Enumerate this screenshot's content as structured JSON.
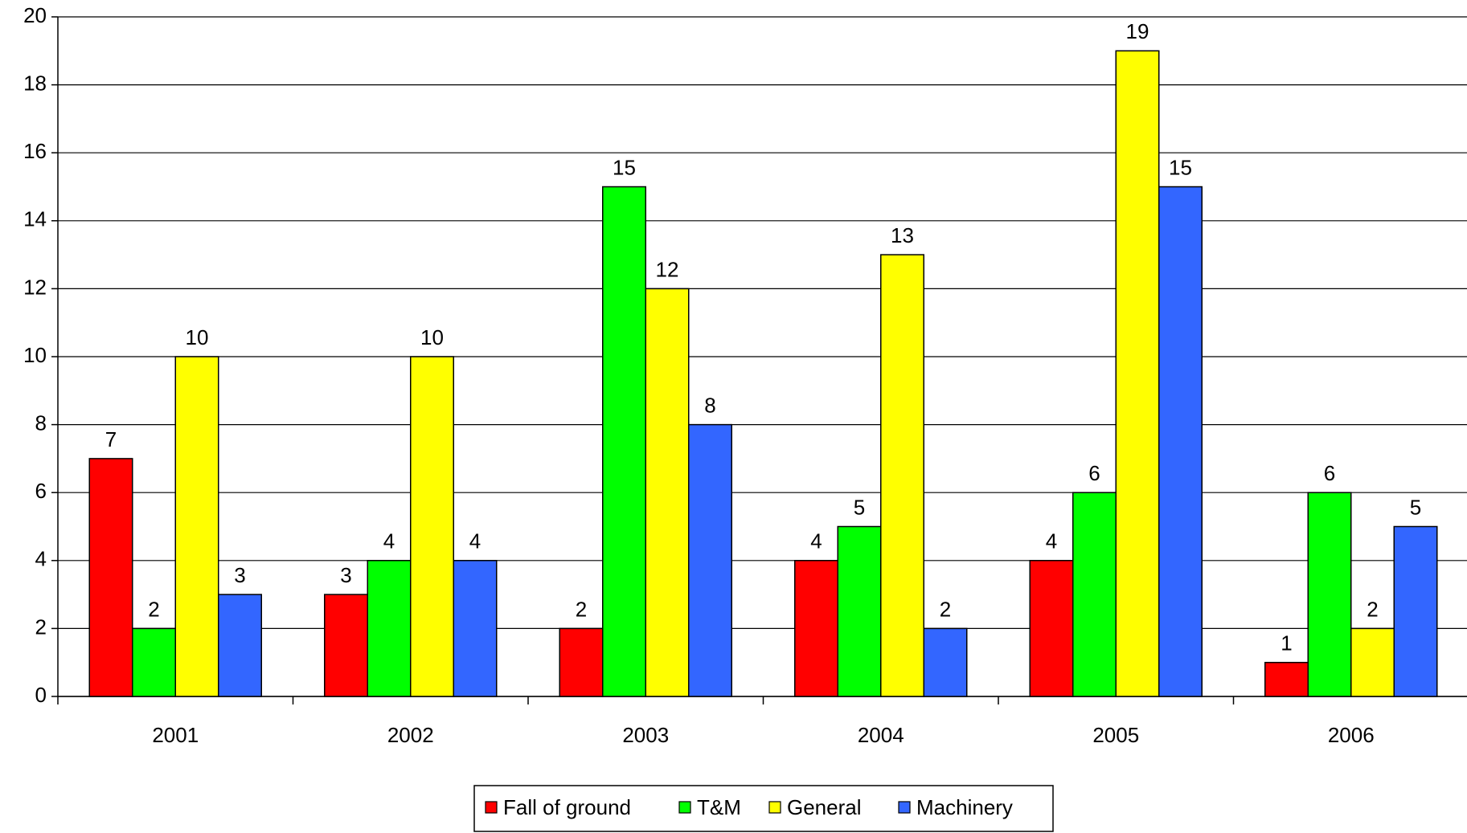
{
  "chart_data": {
    "type": "bar",
    "categories": [
      "2001",
      "2002",
      "2003",
      "2004",
      "2005",
      "2006"
    ],
    "series": [
      {
        "name": "Fall of ground",
        "color": "#ff0000",
        "values": [
          7,
          3,
          2,
          4,
          4,
          1
        ]
      },
      {
        "name": "T&M",
        "color": "#00ff00",
        "values": [
          2,
          4,
          15,
          5,
          6,
          6
        ]
      },
      {
        "name": "General",
        "color": "#ffff00",
        "values": [
          10,
          10,
          12,
          13,
          19,
          2
        ]
      },
      {
        "name": "Machinery",
        "color": "#3366ff",
        "values": [
          3,
          4,
          8,
          2,
          15,
          5
        ]
      }
    ],
    "ylim": [
      0,
      20
    ],
    "yticks": [
      0,
      2,
      4,
      6,
      8,
      10,
      12,
      14,
      16,
      18,
      20
    ],
    "grid": true,
    "legend": "bottom"
  }
}
